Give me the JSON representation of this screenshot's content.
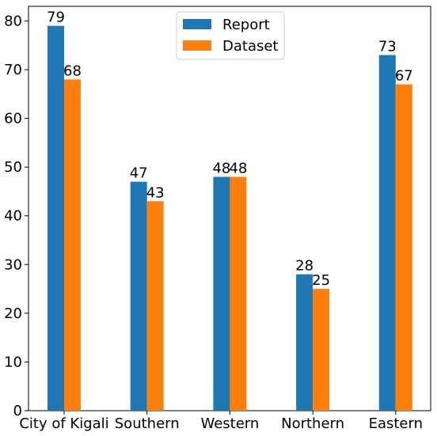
{
  "chart_data": {
    "type": "bar",
    "categories": [
      "City of Kigali",
      "Southern",
      "Western",
      "Northern",
      "Eastern"
    ],
    "series": [
      {
        "name": "Report",
        "values": [
          79,
          47,
          48,
          28,
          73
        ],
        "color": "#1f77b4"
      },
      {
        "name": "Dataset",
        "values": [
          68,
          43,
          48,
          25,
          67
        ],
        "color": "#ff7f0e"
      }
    ],
    "title": "",
    "xlabel": "",
    "ylabel": "",
    "ylim": [
      0,
      83
    ],
    "yticks": [
      0,
      10,
      20,
      30,
      40,
      50,
      60,
      70,
      80
    ],
    "grid": false,
    "legend_position": "top-center"
  }
}
